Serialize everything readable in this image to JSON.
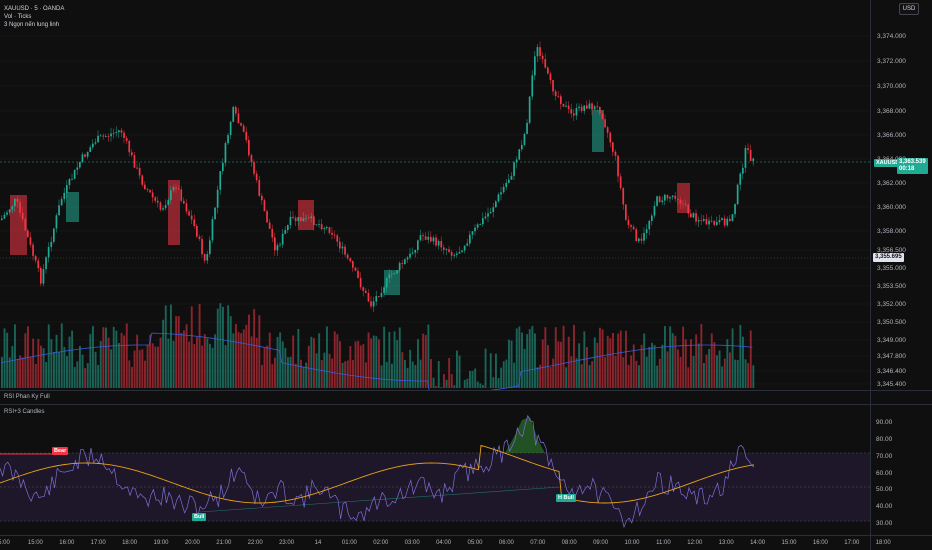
{
  "legend": {
    "symbol_line": "XAUUSD · 5 · OANDA",
    "volume_line": "Vol · Ticks",
    "indicator_line": "3 Ngọn nến lung linh"
  },
  "currency_button": "USD",
  "price_axis": {
    "ticks": [
      "3,374.000",
      "3,372.000",
      "3,370.000",
      "3,368.000",
      "3,366.000",
      "3,364.000",
      "3,362.000",
      "3,360.000",
      "3,358.000",
      "3,356.500",
      "3,355.000",
      "3,353.500",
      "3,352.000",
      "3,350.500",
      "3,349.000",
      "3,347.800",
      "3,346.400",
      "3,345.400"
    ],
    "last_price": "3,363.539",
    "countdown": "00:18",
    "symbol_tag": "XAUUSD",
    "low_line_price": "3,355.695"
  },
  "panes": {
    "rsi_divergence_label": "RSI Phan Ky Full",
    "rsi_candles_label": "RSI+3 Candles"
  },
  "rsi_axis": {
    "ticks": [
      "90.00",
      "80.00",
      "70.00",
      "60.00",
      "50.00",
      "40.00",
      "30.00"
    ],
    "value_a": "60.00",
    "value_b": "50.00"
  },
  "signals": {
    "bear": "Bear",
    "bull": "Bull",
    "hbull": "H Bull"
  },
  "time_axis": [
    "5:00",
    "15:00",
    "16:00",
    "17:00",
    "18:00",
    "19:00",
    "20:00",
    "21:00",
    "22:00",
    "23:00",
    "14",
    "01:00",
    "02:00",
    "03:00",
    "04:00",
    "05:00",
    "06:00",
    "07:00",
    "08:00",
    "09:00",
    "10:00",
    "11:00",
    "12:00",
    "13:00",
    "14:00",
    "15:00",
    "16:00",
    "17:00",
    "18:00"
  ],
  "colors": {
    "up": "#22ab94",
    "down": "#f23645",
    "volume_ma": "#3b5bdb",
    "rsi_line": "#7e6fd6",
    "rsi_ma": "#e8a317",
    "rsi_band": "#2a1e3f"
  }
}
